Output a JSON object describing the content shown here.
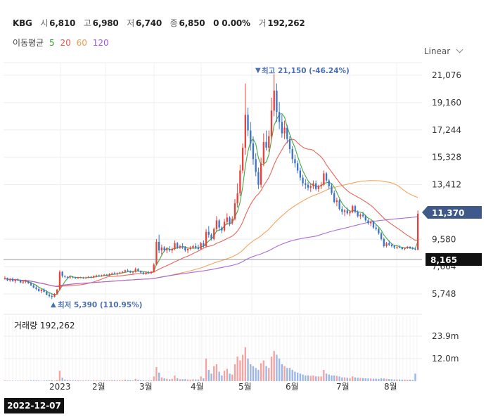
{
  "header": {
    "ticker": "KBG",
    "open_label": "시",
    "open": "6,810",
    "high_label": "고",
    "high": "6,980",
    "low_label": "저",
    "low": "6,740",
    "close_label": "종",
    "close": "6,850",
    "change": "0 0.00%",
    "volume_label": "거",
    "volume": "192,262"
  },
  "ma_legend": {
    "label": "이동평균",
    "items": [
      {
        "text": "5",
        "color": "#2ca02c"
      },
      {
        "text": "20",
        "color": "#e8534a"
      },
      {
        "text": "60",
        "color": "#f29a4f"
      },
      {
        "text": "120",
        "color": "#a259d9"
      }
    ]
  },
  "scale_toggle": "Linear",
  "volume_panel": {
    "label": "거래량 192,262"
  },
  "crosshair_date": "2022-12-07",
  "chart_data": {
    "type": "candlestick",
    "price_ticks": [
      21076,
      19160,
      17244,
      15328,
      13412,
      9580,
      7664,
      5748
    ],
    "price_tick_labels": [
      "21,076",
      "19,160",
      "17,244",
      "15,328",
      "13,412",
      "9,580",
      "7,664",
      "5,748"
    ],
    "volume_ticks": [
      "23.9m",
      "12.0m"
    ],
    "x_labels": [
      "2023",
      "2월",
      "3월",
      "4월",
      "5월",
      "6월",
      "7월",
      "8월"
    ],
    "annotations": {
      "high": "최고 21,150 (-46.24%)",
      "low": "최저 5,390 (110.95%)"
    },
    "current_price_label": "11,370",
    "crosshair_price_label": "8,165",
    "ohlc": [
      [
        6850,
        6980,
        6740,
        6850
      ],
      [
        6850,
        6900,
        6650,
        6700
      ],
      [
        6700,
        6850,
        6600,
        6800
      ],
      [
        6800,
        6900,
        6600,
        6650
      ],
      [
        6650,
        6800,
        6500,
        6750
      ],
      [
        6750,
        6850,
        6650,
        6700
      ],
      [
        6700,
        6750,
        6500,
        6550
      ],
      [
        6550,
        6700,
        6450,
        6600
      ],
      [
        6600,
        6750,
        6500,
        6650
      ],
      [
        6650,
        6700,
        6450,
        6500
      ],
      [
        6500,
        6600,
        6300,
        6350
      ],
      [
        6350,
        6450,
        6150,
        6200
      ],
      [
        6200,
        6350,
        6000,
        6100
      ],
      [
        6100,
        6200,
        5900,
        5950
      ],
      [
        5950,
        6100,
        5800,
        6050
      ],
      [
        6050,
        6150,
        5850,
        5900
      ],
      [
        5900,
        6000,
        5650,
        5700
      ],
      [
        5700,
        5850,
        5500,
        5600
      ],
      [
        5600,
        5750,
        5390,
        5550
      ],
      [
        5550,
        5800,
        5500,
        5750
      ],
      [
        5750,
        6100,
        5700,
        6050
      ],
      [
        6050,
        7400,
        6000,
        7300
      ],
      [
        7300,
        7350,
        6900,
        7000
      ],
      [
        7000,
        7050,
        6850,
        6950
      ],
      [
        6950,
        7000,
        6800,
        6900
      ],
      [
        6900,
        7000,
        6800,
        6950
      ],
      [
        6950,
        7000,
        6850,
        6900
      ],
      [
        6900,
        6950,
        6800,
        6850
      ],
      [
        6850,
        6950,
        6800,
        6900
      ],
      [
        6900,
        6950,
        6850,
        6900
      ],
      [
        6900,
        6950,
        6800,
        6850
      ],
      [
        6850,
        6950,
        6800,
        6900
      ],
      [
        6900,
        7000,
        6850,
        6950
      ],
      [
        6950,
        7000,
        6850,
        6900
      ],
      [
        6900,
        7050,
        6850,
        7000
      ],
      [
        7000,
        7100,
        6900,
        7050
      ],
      [
        7050,
        7100,
        6950,
        7000
      ],
      [
        7000,
        7100,
        6950,
        7050
      ],
      [
        7050,
        7150,
        7000,
        7100
      ],
      [
        7100,
        7150,
        7000,
        7050
      ],
      [
        7050,
        7200,
        7000,
        7150
      ],
      [
        7150,
        7250,
        7100,
        7200
      ],
      [
        7200,
        7300,
        7100,
        7150
      ],
      [
        7150,
        7250,
        7050,
        7200
      ],
      [
        7200,
        7300,
        7150,
        7250
      ],
      [
        7250,
        7350,
        7200,
        7300
      ],
      [
        7300,
        7450,
        7250,
        7400
      ],
      [
        7400,
        7500,
        7300,
        7350
      ],
      [
        7350,
        7400,
        7200,
        7250
      ],
      [
        7250,
        7350,
        7150,
        7300
      ],
      [
        7300,
        7600,
        7250,
        7500
      ],
      [
        7500,
        7550,
        7300,
        7350
      ],
      [
        7350,
        7400,
        7200,
        7250
      ],
      [
        7250,
        7300,
        7100,
        7150
      ],
      [
        7150,
        7300,
        7100,
        7250
      ],
      [
        7250,
        7350,
        7150,
        7200
      ],
      [
        7200,
        7350,
        7150,
        7300
      ],
      [
        7300,
        7900,
        7250,
        7800
      ],
      [
        7800,
        9600,
        7750,
        9400
      ],
      [
        9400,
        9900,
        8600,
        8800
      ],
      [
        8800,
        9200,
        8500,
        9000
      ],
      [
        9000,
        9100,
        8700,
        8800
      ],
      [
        8800,
        9000,
        8600,
        8900
      ],
      [
        8900,
        9100,
        8700,
        8800
      ],
      [
        8800,
        9000,
        8600,
        8900
      ],
      [
        8900,
        9500,
        8800,
        9300
      ],
      [
        9300,
        9400,
        8900,
        9000
      ],
      [
        9000,
        9200,
        8900,
        9100
      ],
      [
        9100,
        9300,
        8900,
        9000
      ],
      [
        9000,
        9100,
        8700,
        8800
      ],
      [
        8800,
        9000,
        8600,
        8900
      ],
      [
        8900,
        9100,
        8800,
        9000
      ],
      [
        9000,
        9200,
        8900,
        9100
      ],
      [
        9100,
        9300,
        8900,
        9000
      ],
      [
        9000,
        9200,
        8800,
        8900
      ],
      [
        8900,
        9400,
        8850,
        9300
      ],
      [
        9300,
        9500,
        9000,
        9100
      ],
      [
        9100,
        10300,
        9000,
        10100
      ],
      [
        10100,
        10500,
        9700,
        9900
      ],
      [
        9900,
        10000,
        9500,
        9600
      ],
      [
        9600,
        10400,
        9500,
        10300
      ],
      [
        10300,
        11200,
        10100,
        10900
      ],
      [
        10900,
        11000,
        10200,
        10400
      ],
      [
        10400,
        10500,
        10000,
        10200
      ],
      [
        10200,
        11000,
        10100,
        10800
      ],
      [
        10800,
        11400,
        10600,
        11100
      ],
      [
        11100,
        11200,
        10500,
        10700
      ],
      [
        10700,
        11200,
        10600,
        11000
      ],
      [
        11000,
        12400,
        10900,
        12100
      ],
      [
        12100,
        13500,
        11800,
        12800
      ],
      [
        12800,
        14800,
        12600,
        14400
      ],
      [
        14400,
        16300,
        14200,
        16000
      ],
      [
        16000,
        20500,
        15500,
        18300
      ],
      [
        18300,
        18800,
        16800,
        17200
      ],
      [
        17200,
        17800,
        15800,
        16300
      ],
      [
        16300,
        16800,
        14800,
        15200
      ],
      [
        15200,
        15600,
        14000,
        14300
      ],
      [
        14300,
        14600,
        13100,
        13400
      ],
      [
        13400,
        15300,
        13200,
        14900
      ],
      [
        14900,
        17000,
        14700,
        16400
      ],
      [
        16400,
        17200,
        15800,
        16000
      ],
      [
        16000,
        17200,
        15700,
        16800
      ],
      [
        16800,
        19500,
        16500,
        18600
      ],
      [
        18600,
        21150,
        18200,
        20000
      ],
      [
        20000,
        20500,
        17800,
        18500
      ],
      [
        18500,
        19200,
        17300,
        17800
      ],
      [
        17800,
        18300,
        16700,
        17000
      ],
      [
        17000,
        17900,
        16600,
        17400
      ],
      [
        17400,
        17600,
        16300,
        16600
      ],
      [
        16600,
        16800,
        15600,
        15900
      ],
      [
        15900,
        16100,
        14900,
        15200
      ],
      [
        15200,
        15500,
        14600,
        14900
      ],
      [
        14900,
        15100,
        14200,
        14400
      ],
      [
        14400,
        14600,
        13700,
        13900
      ],
      [
        13900,
        14100,
        13300,
        13500
      ],
      [
        13500,
        13800,
        13100,
        13400
      ],
      [
        13400,
        13600,
        13000,
        13200
      ],
      [
        13200,
        13500,
        12900,
        13300
      ],
      [
        13300,
        13700,
        13100,
        13500
      ],
      [
        13500,
        13700,
        13000,
        13100
      ],
      [
        13100,
        13400,
        12900,
        13300
      ],
      [
        13300,
        13600,
        13100,
        13400
      ],
      [
        13400,
        14400,
        13300,
        14200
      ],
      [
        14200,
        14300,
        13600,
        13700
      ],
      [
        13700,
        13800,
        13100,
        13300
      ],
      [
        13300,
        13500,
        12700,
        12800
      ],
      [
        12800,
        13000,
        12100,
        12200
      ],
      [
        12200,
        12500,
        11900,
        12300
      ],
      [
        12300,
        12400,
        11600,
        11700
      ],
      [
        11700,
        11900,
        11300,
        11500
      ],
      [
        11500,
        11700,
        11200,
        11600
      ],
      [
        11600,
        11800,
        11300,
        11400
      ],
      [
        11400,
        11600,
        11200,
        11500
      ],
      [
        11500,
        12000,
        11400,
        11900
      ],
      [
        11900,
        12000,
        11400,
        11500
      ],
      [
        11500,
        11600,
        11100,
        11200
      ],
      [
        11200,
        11400,
        11000,
        11300
      ],
      [
        11300,
        11500,
        11100,
        11200
      ],
      [
        11200,
        11300,
        10800,
        10900
      ],
      [
        10900,
        11000,
        10600,
        10700
      ],
      [
        10700,
        10900,
        10500,
        10800
      ],
      [
        10800,
        10900,
        10300,
        10400
      ],
      [
        10400,
        10600,
        10200,
        10300
      ],
      [
        10300,
        10400,
        9900,
        10000
      ],
      [
        10000,
        10100,
        9500,
        9600
      ],
      [
        9600,
        9700,
        9000,
        9100
      ],
      [
        9100,
        9400,
        9000,
        9300
      ],
      [
        9300,
        9500,
        9100,
        9200
      ],
      [
        9200,
        9300,
        9000,
        9100
      ],
      [
        9100,
        9200,
        8900,
        9000
      ],
      [
        9000,
        9100,
        8900,
        9050
      ],
      [
        9050,
        9150,
        8950,
        9000
      ],
      [
        9000,
        9050,
        8850,
        8900
      ],
      [
        8900,
        9000,
        8800,
        8950
      ],
      [
        8950,
        9100,
        8900,
        9050
      ],
      [
        9050,
        9100,
        8900,
        8950
      ],
      [
        8950,
        9050,
        8850,
        8900
      ],
      [
        8900,
        9000,
        8800,
        8850
      ],
      [
        8850,
        11600,
        8800,
        11370
      ]
    ],
    "volume": [
      0.3,
      0.2,
      0.2,
      0.2,
      0.2,
      0.2,
      0.2,
      0.2,
      0.2,
      0.2,
      0.3,
      0.3,
      0.3,
      0.3,
      0.2,
      0.3,
      0.4,
      0.4,
      0.5,
      0.3,
      0.6,
      5.5,
      1.8,
      0.8,
      0.6,
      0.5,
      0.4,
      0.4,
      0.4,
      0.3,
      0.3,
      0.3,
      0.4,
      0.3,
      0.5,
      0.4,
      0.3,
      0.4,
      0.4,
      0.3,
      0.4,
      0.5,
      0.4,
      0.4,
      0.5,
      0.5,
      0.8,
      0.6,
      0.5,
      0.4,
      1.2,
      0.7,
      0.5,
      0.5,
      0.4,
      0.4,
      0.5,
      2.5,
      7.5,
      4.5,
      2.0,
      1.5,
      1.2,
      1.0,
      1.2,
      3.0,
      1.6,
      1.0,
      1.0,
      1.1,
      0.9,
      0.8,
      1.0,
      0.9,
      0.9,
      2.5,
      1.5,
      12.0,
      6.0,
      4.0,
      8.0,
      9.0,
      5.0,
      3.0,
      5.5,
      6.5,
      4.0,
      3.5,
      9.0,
      13.0,
      11.0,
      14.0,
      18.0,
      12.0,
      9.0,
      8.0,
      7.0,
      6.0,
      9.5,
      11.0,
      8.0,
      7.0,
      13.0,
      16.0,
      14.0,
      12.0,
      9.0,
      8.0,
      7.0,
      7.0,
      6.0,
      5.0,
      4.5,
      4.0,
      3.5,
      3.0,
      3.0,
      2.8,
      3.0,
      2.5,
      2.5,
      2.5,
      6.0,
      4.0,
      3.5,
      3.0,
      3.0,
      2.8,
      2.5,
      2.0,
      2.0,
      1.8,
      1.6,
      2.5,
      2.0,
      1.8,
      1.7,
      1.6,
      1.5,
      1.4,
      1.4,
      1.3,
      1.3,
      1.2,
      1.5,
      1.4,
      1.2,
      1.1,
      1.0,
      0.9,
      0.9,
      0.9,
      0.8,
      0.8,
      0.8,
      0.8,
      0.7,
      4.0
    ]
  }
}
